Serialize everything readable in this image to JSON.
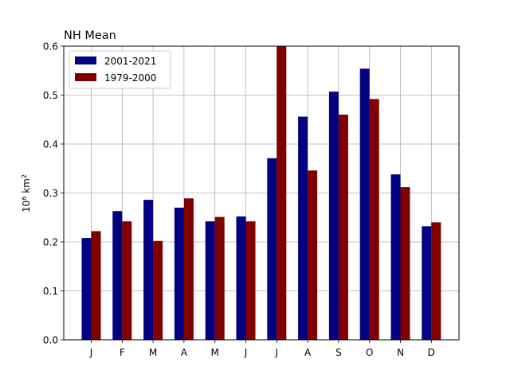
{
  "chart_data": {
    "type": "bar",
    "title": "NH Mean",
    "ylabel_base": "10",
    "ylabel_exp": "6",
    "ylabel_unit": " km",
    "ylabel_unit_exp": "2",
    "xlabel": "",
    "categories": [
      "J",
      "F",
      "M",
      "A",
      "M",
      "J",
      "J",
      "A",
      "S",
      "O",
      "N",
      "D"
    ],
    "series": [
      {
        "name": "2001-2021",
        "color": "#000080",
        "values": [
          0.208,
          0.263,
          0.286,
          0.27,
          0.242,
          0.252,
          0.371,
          0.456,
          0.507,
          0.554,
          0.338,
          0.232
        ]
      },
      {
        "name": "1979-2000",
        "color": "#800000",
        "values": [
          0.222,
          0.242,
          0.202,
          0.289,
          0.251,
          0.242,
          0.6,
          0.346,
          0.46,
          0.492,
          0.312,
          0.24
        ]
      }
    ],
    "ylim": [
      0,
      0.6
    ],
    "yticks": [
      "0.0",
      "0.1",
      "0.2",
      "0.3",
      "0.4",
      "0.5",
      "0.6"
    ],
    "grid": true,
    "legend_position": "top-left"
  }
}
